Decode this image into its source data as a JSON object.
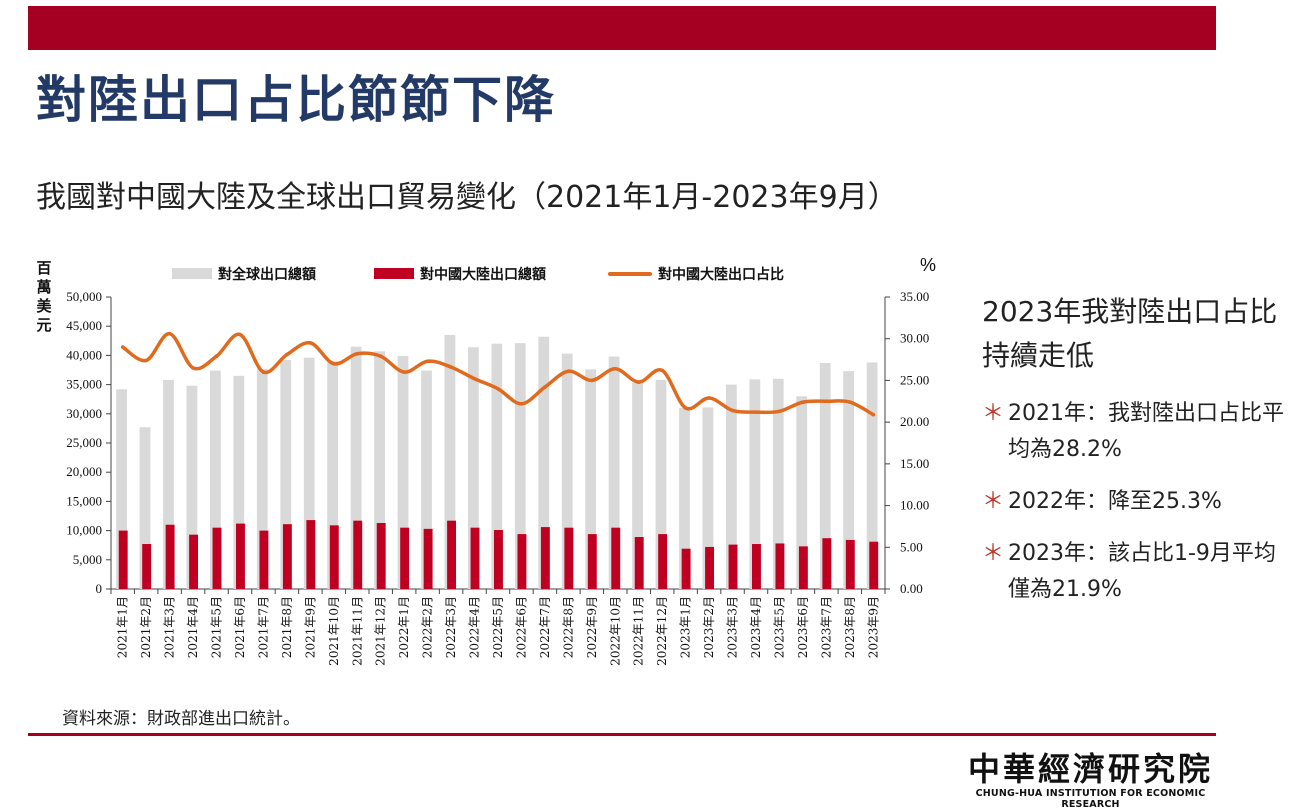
{
  "page": {
    "title": "對陸出口占比節節下降",
    "subtitle": "我國對中國大陸及全球出口貿易變化（2021年1月-2023年9月）",
    "source": "資料來源：財政部進出口統計。",
    "logo_cn": "中華經濟研究院",
    "logo_en": "CHUNG-HUA INSTITUTION FOR ECONOMIC RESEARCH"
  },
  "side": {
    "heading": "2023年我對陸出口占比持續走低",
    "bullet_glyph": "＊",
    "items": [
      "2021年：我對陸出口占比平均為28.2%",
      "2022年：降至25.3%",
      "2023年：該占比1-9月平均僅為21.9%"
    ]
  },
  "colors": {
    "global_bar": "#d9d9d9",
    "china_bar": "#c00020",
    "share_line": "#e06a1e",
    "accent": "#a50021",
    "title": "#233a66"
  },
  "chart_data": {
    "type": "bar",
    "left_axis_unit": "百萬美元",
    "right_axis_unit": "%",
    "y_left_ticks": [
      "0",
      "5,000",
      "10,000",
      "15,000",
      "20,000",
      "25,000",
      "30,000",
      "35,000",
      "40,000",
      "45,000",
      "50,000"
    ],
    "y_right_ticks": [
      "0.00",
      "5.00",
      "10.00",
      "15.00",
      "20.00",
      "25.00",
      "30.00",
      "35.00"
    ],
    "ylim_left": [
      0,
      50000
    ],
    "ylim_right": [
      0,
      35
    ],
    "categories": [
      "2021年1月",
      "2021年2月",
      "2021年3月",
      "2021年4月",
      "2021年5月",
      "2021年6月",
      "2021年7月",
      "2021年8月",
      "2021年9月",
      "2021年10月",
      "2021年11月",
      "2021年12月",
      "2022年1月",
      "2022年2月",
      "2022年3月",
      "2022年4月",
      "2022年5月",
      "2022年6月",
      "2022年7月",
      "2022年8月",
      "2022年9月",
      "2022年10月",
      "2022年11月",
      "2022年12月",
      "2023年1月",
      "2023年2月",
      "2023年3月",
      "2023年4月",
      "2023年5月",
      "2023年6月",
      "2023年7月",
      "2023年8月",
      "2023年9月"
    ],
    "series": [
      {
        "name": "對全球出口總額",
        "type": "bar",
        "axis": "left",
        "values": [
          34200,
          27700,
          35800,
          34800,
          37400,
          36500,
          37700,
          39200,
          39600,
          39000,
          41500,
          40700,
          39900,
          37400,
          43500,
          41400,
          42000,
          42100,
          43200,
          40300,
          37600,
          39800,
          35300,
          35800,
          31000,
          31100,
          35000,
          35900,
          36000,
          33000,
          38700,
          37300,
          38800
        ]
      },
      {
        "name": "對中國大陸出口總額",
        "type": "bar",
        "axis": "left",
        "values": [
          10000,
          7700,
          11000,
          9300,
          10500,
          11200,
          10000,
          11100,
          11800,
          10900,
          11700,
          11300,
          10500,
          10300,
          11700,
          10500,
          10100,
          9400,
          10600,
          10500,
          9400,
          10500,
          8900,
          9400,
          6900,
          7200,
          7600,
          7700,
          7800,
          7300,
          8700,
          8400,
          8100
        ]
      },
      {
        "name": "對中國大陸出口占比",
        "type": "line",
        "axis": "right",
        "values": [
          29.0,
          27.4,
          30.6,
          26.5,
          27.9,
          30.5,
          26.0,
          28.1,
          29.5,
          27.0,
          28.2,
          27.9,
          26.0,
          27.3,
          26.6,
          25.2,
          24.0,
          22.2,
          24.2,
          26.1,
          25.0,
          26.4,
          24.8,
          26.2,
          21.7,
          22.9,
          21.4,
          21.2,
          21.3,
          22.4,
          22.5,
          22.4,
          20.9
        ]
      }
    ]
  }
}
